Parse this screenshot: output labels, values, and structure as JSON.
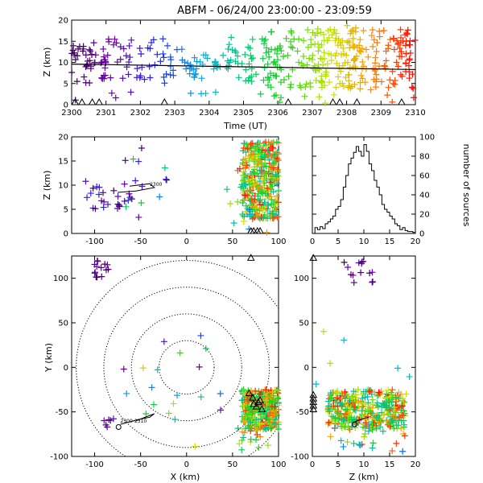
{
  "title": "ABFM - 06/24/00 23:00:00 - 23:09:59",
  "chart_data": [
    {
      "id": "time_height",
      "type": "scatter",
      "xlabel": "Time (UT)",
      "ylabel": "Z (km)",
      "xlim": [
        2300,
        2310
      ],
      "ylim": [
        0,
        20
      ],
      "xticks": [
        "2300",
        "2301",
        "2302",
        "2303",
        "2304",
        "2305",
        "2306",
        "2307",
        "2308",
        "2309",
        "2310"
      ],
      "yticks": [
        "0",
        "5",
        "10",
        "15",
        "20"
      ],
      "color_by": "time",
      "trend_line": {
        "x": [
          2300,
          2310
        ],
        "y": [
          9.6,
          8.3
        ]
      },
      "stations_time": [
        2300.1,
        2300.3,
        2300.6,
        2300.8,
        2302.7,
        2306.3,
        2307.6,
        2307.8,
        2308.3,
        2309.6
      ],
      "clusters": [
        {
          "t": [
            2300,
            2301
          ],
          "z": [
            5,
            14
          ],
          "n": 40
        },
        {
          "t": [
            2300.5,
            2302
          ],
          "z": [
            6,
            16
          ],
          "n": 30
        },
        {
          "t": [
            2302,
            2303.3
          ],
          "z": [
            5,
            16
          ],
          "n": 30
        },
        {
          "t": [
            2303.2,
            2304.5
          ],
          "z": [
            6,
            12
          ],
          "n": 30
        },
        {
          "t": [
            2304.5,
            2306
          ],
          "z": [
            5,
            16
          ],
          "n": 50
        },
        {
          "t": [
            2305.5,
            2307.5
          ],
          "z": [
            4,
            18
          ],
          "n": 70
        },
        {
          "t": [
            2307,
            2308.5
          ],
          "z": [
            4,
            18
          ],
          "n": 80
        },
        {
          "t": [
            2308,
            2310
          ],
          "z": [
            3,
            19
          ],
          "n": 110
        },
        {
          "t": [
            2300,
            2310
          ],
          "z": [
            0,
            3
          ],
          "n": 20
        }
      ]
    },
    {
      "id": "x_height",
      "type": "scatter",
      "ylabel": "Z (km)",
      "xlim": [
        -125,
        100
      ],
      "ylim": [
        0,
        20
      ],
      "xticks": [
        "-100",
        "-50",
        "0",
        "50",
        "100"
      ],
      "yticks": [
        "0",
        "5",
        "10",
        "15",
        "20"
      ],
      "track_label": "2300",
      "clusters": [
        {
          "x": [
            -110,
            -60
          ],
          "z": [
            5,
            11
          ],
          "n": 25,
          "tr": [
            0,
            0.25
          ]
        },
        {
          "x": [
            -70,
            -20
          ],
          "z": [
            2,
            18
          ],
          "n": 15,
          "tr": [
            0,
            0.6
          ]
        },
        {
          "x": [
            60,
            100
          ],
          "z": [
            3,
            19
          ],
          "n": 350,
          "tr": [
            0.4,
            1
          ]
        },
        {
          "x": [
            40,
            100
          ],
          "z": [
            0,
            19
          ],
          "n": 20,
          "tr": [
            0.3,
            1
          ]
        }
      ]
    },
    {
      "id": "height_histogram",
      "type": "bar",
      "xlim": [
        0,
        20
      ],
      "ylim": [
        0,
        100
      ],
      "xticks": [
        "0",
        "5",
        "10",
        "15",
        "20"
      ],
      "yticks": [
        "0",
        "20",
        "40",
        "60",
        "80",
        "100"
      ],
      "ylabel": "number of sources",
      "bin_width": 0.5,
      "bins_start": [
        0.5,
        1,
        1.5,
        2,
        2.5,
        3,
        3.5,
        4,
        4.5,
        5,
        5.5,
        6,
        6.5,
        7,
        7.5,
        8,
        8.5,
        9,
        9.5,
        10,
        10.5,
        11,
        11.5,
        12,
        12.5,
        13,
        13.5,
        14,
        14.5,
        15,
        15.5,
        16,
        16.5,
        17,
        17.5,
        18,
        18.5,
        19,
        19.5
      ],
      "values": [
        6,
        4,
        7,
        5,
        10,
        12,
        15,
        18,
        25,
        28,
        35,
        48,
        60,
        72,
        78,
        84,
        90,
        85,
        80,
        92,
        85,
        72,
        65,
        55,
        48,
        40,
        30,
        25,
        22,
        18,
        15,
        10,
        8,
        4,
        6,
        3,
        2,
        2,
        1
      ]
    },
    {
      "id": "plan_view",
      "type": "scatter",
      "xlabel": "X (km)",
      "ylabel": "Y (km)",
      "xlim": [
        -125,
        100
      ],
      "ylim": [
        -100,
        125
      ],
      "xticks": [
        "-100",
        "-50",
        "0",
        "50",
        "100"
      ],
      "yticks": [
        "-100",
        "-50",
        "0",
        "50",
        "100"
      ],
      "range_rings_km": [
        30,
        60,
        90,
        120
      ],
      "track_label": "2300-2310",
      "stations": [
        [
          68,
          -30
        ],
        [
          72,
          -35
        ],
        [
          78,
          -40
        ],
        [
          80,
          -38
        ],
        [
          76,
          -45
        ],
        [
          73,
          -42
        ],
        [
          82,
          -48
        ],
        [
          70,
          122
        ]
      ],
      "clusters": [
        {
          "x": [
            -100,
            -80
          ],
          "y": [
            100,
            120
          ],
          "n": 14,
          "tr": [
            0,
            0.15
          ]
        },
        {
          "x": [
            -90,
            -75
          ],
          "y": [
            -70,
            -55
          ],
          "n": 6,
          "tr": [
            0,
            0.2
          ]
        },
        {
          "x": [
            -80,
            40
          ],
          "y": [
            -95,
            40
          ],
          "n": 20,
          "tr": [
            0.1,
            0.8
          ]
        },
        {
          "x": [
            60,
            100
          ],
          "y": [
            -70,
            -25
          ],
          "n": 350,
          "tr": [
            0.4,
            1
          ]
        },
        {
          "x": [
            55,
            90
          ],
          "y": [
            -95,
            -60
          ],
          "n": 25,
          "tr": [
            0.4,
            1
          ]
        }
      ]
    },
    {
      "id": "height_y",
      "type": "scatter",
      "xlabel": "Z (km)",
      "xlim": [
        0,
        20
      ],
      "ylim": [
        -100,
        125
      ],
      "xticks": [
        "0",
        "5",
        "10",
        "15",
        "20"
      ],
      "yticks": [
        "-100",
        "-50",
        "0",
        "50",
        "100"
      ],
      "stations_z": [
        0.2
      ],
      "clusters": [
        {
          "z": [
            5,
            12
          ],
          "y": [
            95,
            120
          ],
          "n": 14,
          "tr": [
            0,
            0.15
          ]
        },
        {
          "z": [
            3,
            18
          ],
          "y": [
            -70,
            -25
          ],
          "n": 350,
          "tr": [
            0.4,
            1
          ]
        },
        {
          "z": [
            3,
            18
          ],
          "y": [
            -95,
            -55
          ],
          "n": 35,
          "tr": [
            0.3,
            1
          ]
        },
        {
          "z": [
            0,
            20
          ],
          "y": [
            -30,
            60
          ],
          "n": 8,
          "tr": [
            0.2,
            0.9
          ]
        }
      ]
    }
  ]
}
